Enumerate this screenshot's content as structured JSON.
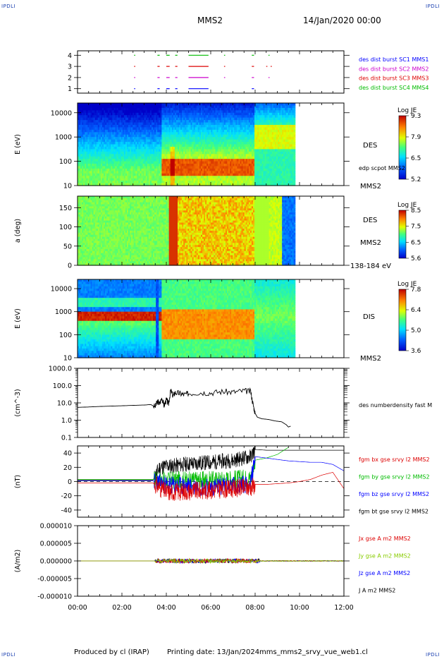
{
  "header": {
    "corner_tl": "IPDLI",
    "corner_tr": "IPDLI",
    "corner_bl": "IPDLI",
    "corner_br": "IPDLI",
    "mission": "MMS2",
    "datetime": "14/Jan/2020 00:00"
  },
  "footer": {
    "produced": "Produced by cl (IRAP)",
    "printing": "Printing date: 13/Jan/2024",
    "file": "mms_mms2_srvy_vue_web1.cl"
  },
  "colors": {
    "blue": "#0000ff",
    "magenta": "#cc00cc",
    "red": "#dd0000",
    "green": "#00bb00",
    "black": "#000000",
    "jy_green": "#88cc00"
  },
  "chart_data": [
    {
      "type": "scatter",
      "id": "burst",
      "yticks": [
        "1",
        "2",
        "3",
        "4"
      ],
      "ylim": [
        0.6,
        4.4
      ],
      "xlim": [
        0,
        12
      ],
      "legend": [
        {
          "text": "des dist burst SC1 MMS1",
          "color": "#0000ff"
        },
        {
          "text": "des dist burst SC2 MMS2",
          "color": "#cc00cc"
        },
        {
          "text": "des dist burst SC3 MMS3",
          "color": "#dd0000"
        },
        {
          "text": "des dist burst SC4 MMS4",
          "color": "#00bb00"
        }
      ],
      "series": [
        {
          "level": 1,
          "color": "#0000ff",
          "intervals": [
            [
              2.55,
              2.6
            ],
            [
              3.6,
              3.7
            ],
            [
              4.0,
              4.15
            ],
            [
              4.4,
              4.5
            ],
            [
              5.0,
              5.9
            ],
            [
              7.85,
              7.95
            ]
          ]
        },
        {
          "level": 2,
          "color": "#cc00cc",
          "intervals": [
            [
              2.55,
              2.6
            ],
            [
              3.6,
              3.7
            ],
            [
              4.0,
              4.15
            ],
            [
              4.4,
              4.5
            ],
            [
              5.0,
              5.9
            ],
            [
              6.6,
              6.65
            ],
            [
              7.85,
              7.95
            ],
            [
              8.6,
              8.65
            ]
          ]
        },
        {
          "level": 3,
          "color": "#dd0000",
          "intervals": [
            [
              2.55,
              2.6
            ],
            [
              3.6,
              3.7
            ],
            [
              4.0,
              4.15
            ],
            [
              4.4,
              4.5
            ],
            [
              5.0,
              5.9
            ],
            [
              6.6,
              6.65
            ],
            [
              7.85,
              7.95
            ],
            [
              8.5,
              8.55
            ],
            [
              8.7,
              8.75
            ]
          ]
        },
        {
          "level": 4,
          "color": "#00bb00",
          "intervals": [
            [
              2.55,
              2.6
            ],
            [
              3.6,
              3.7
            ],
            [
              4.0,
              4.15
            ],
            [
              4.4,
              4.5
            ],
            [
              5.0,
              5.9
            ],
            [
              6.6,
              6.65
            ],
            [
              7.85,
              7.95
            ],
            [
              8.6,
              8.65
            ]
          ]
        }
      ]
    },
    {
      "type": "heatmap",
      "id": "des_energy",
      "ylabel": "E (eV)",
      "yticks": [
        "10",
        "100",
        "1000",
        "10000"
      ],
      "ylim_log": [
        1,
        4.4
      ],
      "xlim": [
        0,
        12
      ],
      "right_label": "DES",
      "right_sub": "edp scpot MMS2",
      "right_bottom": "MMS2",
      "colorbar": {
        "title": "Log JE",
        "ticks": [
          "9.3",
          "7.9",
          "6.5",
          "5.2"
        ]
      },
      "data_end": 9.8
    },
    {
      "type": "heatmap",
      "id": "des_pitch",
      "ylabel": "a (deg)",
      "yticks": [
        "0",
        "50",
        "100",
        "150"
      ],
      "ylim": [
        0,
        180
      ],
      "xlim": [
        0,
        12
      ],
      "right_label": "DES",
      "right_sub": "MMS2",
      "right_bottom": "138-184 eV",
      "colorbar": {
        "title": "Log JE",
        "ticks": [
          "8.5",
          "7.5",
          "6.5",
          "5.6"
        ]
      },
      "data_end": 9.8
    },
    {
      "type": "heatmap",
      "id": "dis_energy",
      "ylabel": "E (eV)",
      "yticks": [
        "10",
        "100",
        "1000",
        "10000"
      ],
      "ylim_log": [
        1,
        4.4
      ],
      "xlim": [
        0,
        12
      ],
      "right_label": "DIS",
      "right_bottom": "MMS2",
      "colorbar": {
        "title": "Log JE",
        "ticks": [
          "7.8",
          "6.4",
          "5.0",
          "3.6"
        ]
      },
      "data_end": 9.8
    },
    {
      "type": "line",
      "id": "density",
      "ylabel": "(cm^-3)",
      "yticks": [
        "0.1",
        "1.0",
        "10.0",
        "100.0",
        "1000.0"
      ],
      "ylim_log": [
        -1,
        3
      ],
      "xlim": [
        0,
        12
      ],
      "legend": [
        {
          "text": "des numberdensity fast M",
          "color": "#000000"
        }
      ],
      "series": [
        {
          "name": "des numberdensity fast M",
          "color": "#000000",
          "x": [
            0,
            0.5,
            1,
            1.5,
            2,
            2.5,
            3,
            3.3,
            3.5,
            3.6,
            3.7,
            3.8,
            3.9,
            4.0,
            4.1,
            4.2,
            4.3,
            4.4,
            4.6,
            4.8,
            5.0,
            5.5,
            6.0,
            6.5,
            7.0,
            7.5,
            7.8,
            7.9,
            8.0,
            8.1,
            8.3,
            8.6,
            8.9,
            9.2,
            9.4,
            9.5,
            9.6
          ],
          "y": [
            5.5,
            5.8,
            6.2,
            6.5,
            6.8,
            7.2,
            7.5,
            8,
            6,
            12,
            9,
            20,
            7,
            15,
            9,
            55,
            25,
            40,
            35,
            30,
            35,
            40,
            38,
            45,
            42,
            50,
            45,
            9,
            2.5,
            1.5,
            1.2,
            1.1,
            0.9,
            0.8,
            0.55,
            0.4,
            0.45
          ]
        }
      ]
    },
    {
      "type": "line",
      "id": "field",
      "ylabel": "(nT)",
      "yticks": [
        "-40",
        "-20",
        "0",
        "20",
        "40"
      ],
      "ylim": [
        -50,
        50
      ],
      "xlim": [
        0,
        12
      ],
      "legend": [
        {
          "text": "fgm bx gse srvy l2 MMS2",
          "color": "#dd0000"
        },
        {
          "text": "fgm by gse srvy l2 MMS2",
          "color": "#00bb00"
        },
        {
          "text": "fgm bz gse srvy l2 MMS2",
          "color": "#0000ff"
        },
        {
          "text": "fgm bt gse srvy l2 MMS2",
          "color": "#000000"
        }
      ],
      "series": [
        {
          "name": "fgm bt gse srvy l2 MMS2",
          "color": "#000000",
          "x": [
            0,
            3.4,
            3.5,
            3.7,
            4.0,
            4.3,
            5.0,
            6.0,
            7.0,
            7.8,
            8.0,
            8.5,
            9.0,
            9.5,
            10,
            10.5,
            11,
            11.5,
            12
          ],
          "y": [
            2,
            2,
            8,
            20,
            22,
            22,
            25,
            27,
            30,
            35,
            45,
            44,
            44,
            44,
            44,
            44,
            44,
            44,
            44
          ]
        },
        {
          "name": "fgm by gse srvy l2 MMS2",
          "color": "#00bb00",
          "x": [
            0,
            3.4,
            4.0,
            6.0,
            7.8,
            8.0,
            8.5,
            9.0,
            9.5
          ],
          "y": [
            3,
            3,
            2,
            2,
            5,
            30,
            33,
            38,
            48
          ]
        },
        {
          "name": "fgm bz gse srvy l2 MMS2",
          "color": "#0000ff",
          "x": [
            0,
            3.4,
            4.0,
            6.0,
            7.8,
            8.0,
            8.5,
            9.0,
            9.5,
            10,
            10.5,
            11,
            11.5,
            12
          ],
          "y": [
            1,
            1,
            -5,
            -8,
            -3,
            35,
            33,
            31,
            29,
            28,
            27,
            27,
            24,
            15
          ]
        },
        {
          "name": "fgm bx gse srvy l2 MMS2",
          "color": "#dd0000",
          "x": [
            0,
            3.4,
            4.0,
            6.0,
            7.8,
            8.0,
            8.5,
            9.0,
            9.5,
            10,
            10.5,
            11,
            11.5,
            12
          ],
          "y": [
            -2,
            -2,
            -15,
            -12,
            -8,
            -4,
            -4,
            -3,
            -2,
            0,
            3,
            9,
            13,
            -10
          ]
        }
      ]
    },
    {
      "type": "line",
      "id": "current",
      "ylabel": "(A/m2)",
      "yticks": [
        "-0.000010",
        "-0.000005",
        "0.000000",
        "0.000005",
        "0.000010"
      ],
      "ylim": [
        -1e-05,
        1e-05
      ],
      "xlim": [
        0,
        12
      ],
      "xticks": [
        "00:00",
        "02:00",
        "04:00",
        "06:00",
        "08:00",
        "10:00",
        "12:00"
      ],
      "legend": [
        {
          "text": "Jx gse A m2 MMS2",
          "color": "#dd0000"
        },
        {
          "text": "Jy gse A m2 MMS2",
          "color": "#88cc00"
        },
        {
          "text": "Jz gse A m2 MMS2",
          "color": "#0000ff"
        },
        {
          "text": "J A m2 MMS2",
          "color": "#000000"
        }
      ]
    }
  ]
}
